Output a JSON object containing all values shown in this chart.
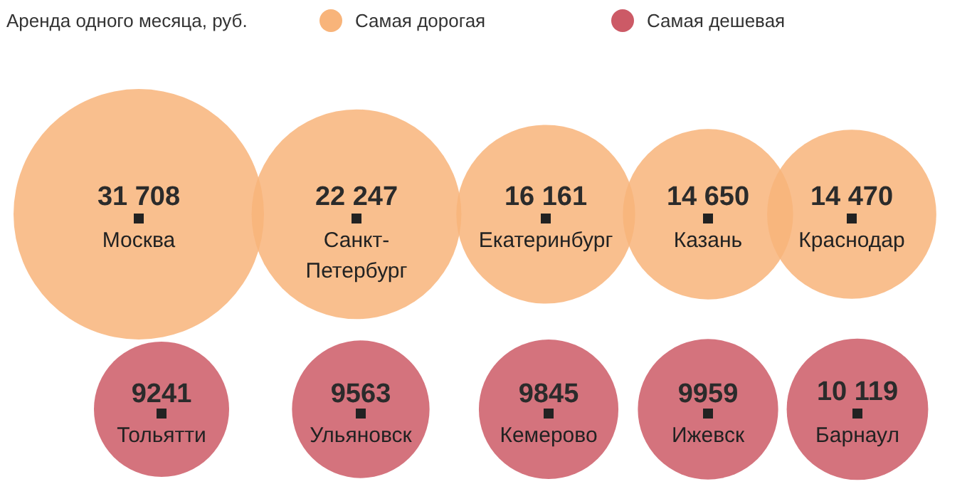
{
  "chart_data": {
    "type": "other",
    "title": "Аренда одного месяца, руб.",
    "legend": "top",
    "categories": [
      "Москва",
      "Санкт-Петербург",
      "Екатеринбург",
      "Казань",
      "Краснодар",
      "Тольятти",
      "Ульяновск",
      "Кемерово",
      "Ижевск",
      "Барнаул"
    ],
    "series": [
      {
        "name": "Самая дорогая",
        "color": "#f8b47a",
        "values": [
          31708,
          22247,
          16161,
          14650,
          14470,
          null,
          null,
          null,
          null,
          null
        ],
        "value_labels": [
          "31 708",
          "22 247",
          "16 161",
          "14 650",
          "14 470",
          null,
          null,
          null,
          null,
          null
        ]
      },
      {
        "name": "Самая дешевая",
        "color": "#cc5a66",
        "values": [
          null,
          null,
          null,
          null,
          null,
          9241,
          9563,
          9845,
          9959,
          10119
        ],
        "value_labels": [
          null,
          null,
          null,
          null,
          null,
          "9241",
          "9563",
          "9845",
          "9959",
          "10 119"
        ]
      }
    ]
  }
}
